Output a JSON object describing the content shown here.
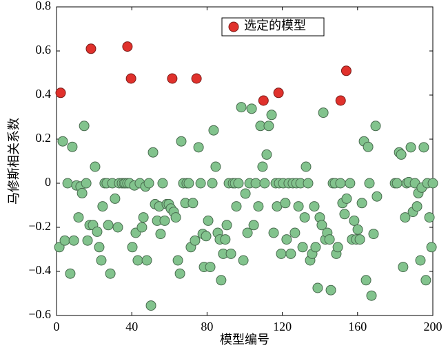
{
  "chart_data": {
    "type": "scatter",
    "xlabel": "模型编号",
    "ylabel": "马修斯相关系数",
    "xlim": [
      0,
      200
    ],
    "ylim": [
      -0.6,
      0.8
    ],
    "xticks": [
      0,
      40,
      80,
      120,
      160,
      200
    ],
    "yticks": [
      {
        "value": -0.6,
        "label": "−0.6"
      },
      {
        "value": -0.4,
        "label": "−0.4"
      },
      {
        "value": -0.2,
        "label": "−0.2"
      },
      0,
      0.2,
      0.4,
      0.6,
      0.8
    ],
    "legend": "top",
    "series": [
      {
        "color": "#82c38d",
        "x": [
          1.5,
          3.3,
          4.4,
          5.9,
          7.3,
          8.4,
          9.2,
          10.6,
          11.7,
          12.8,
          13.6,
          14.7,
          15.8,
          16.5,
          17.6,
          19.4,
          20.5,
          21.6,
          22.7,
          23.8,
          24.5,
          25.6,
          26.7,
          27.5,
          28.6,
          29.7,
          31.1,
          32.6,
          33.3,
          34.8,
          35.9,
          36.6,
          37.7,
          38.8,
          40.3,
          41.4,
          42.1,
          43.2,
          44.3,
          45.4,
          46.2,
          47.3,
          48,
          49.1,
          50.2,
          51.3,
          52.4,
          53.5,
          54.6,
          55.3,
          56.4,
          57.5,
          58.6,
          59.7,
          60.8,
          62.3,
          63.4,
          64.5,
          65.6,
          66.3,
          67.4,
          68.5,
          69.2,
          70.3,
          71.4,
          72.5,
          73.6,
          75.5,
          76.6,
          77.7,
          78.4,
          79.5,
          80.6,
          81.7,
          82.8,
          83.5,
          84.6,
          85.7,
          86.8,
          87.5,
          88.6,
          89.7,
          90.5,
          91.6,
          92.7,
          93.8,
          94.9,
          95.6,
          96.7,
          98.2,
          99.3,
          100.4,
          101.5,
          102.6,
          103.7,
          104.8,
          105.9,
          107.3,
          108.4,
          109.5,
          110.6,
          111.7,
          112.8,
          114.3,
          115.4,
          116.5,
          117.2,
          118.3,
          119.4,
          120.5,
          121.6,
          122.3,
          123.4,
          124.5,
          125.6,
          126.7,
          127.5,
          128.6,
          129.7,
          130.8,
          131.9,
          132.6,
          133.7,
          134.8,
          135.9,
          137,
          137.7,
          138.8,
          139.9,
          141,
          141.8,
          142.9,
          143.9,
          145.1,
          145.8,
          146.9,
          148,
          148.7,
          149.5,
          150.9,
          152,
          153.1,
          154.2,
          156,
          157.1,
          158.2,
          159.3,
          160.1,
          161.2,
          162.3,
          163.4,
          164.5,
          165.6,
          166.3,
          167.4,
          168.5,
          169.6,
          170.3,
          179.9,
          181,
          182.1,
          183.2,
          184.2,
          185.3,
          186.1,
          187.2,
          188.3,
          189.4,
          190.5,
          191.6,
          192.3,
          193.4,
          194.1,
          195.2,
          196.3,
          197.1,
          198.2,
          199.3,
          200
        ],
        "values": [
          -0.29,
          0.19,
          -0.26,
          0,
          -0.41,
          0.165,
          -0.26,
          -0.01,
          -0.155,
          -0.015,
          -0.045,
          0.26,
          0,
          -0.26,
          -0.19,
          -0.19,
          0.075,
          -0.22,
          -0.29,
          -0.35,
          -0.105,
          0,
          0,
          -0.19,
          -0.41,
          0,
          -0.07,
          -0.2,
          0,
          0,
          0,
          0,
          0,
          0,
          -0.29,
          -0.01,
          -0.225,
          -0.35,
          0,
          -0.2,
          -0.155,
          -0.015,
          -0.35,
          0,
          -0.555,
          0.14,
          -0.095,
          -0.17,
          -0.105,
          -0.23,
          0,
          -0.17,
          -0.095,
          -0.095,
          -0.115,
          -0.13,
          -0.155,
          -0.35,
          -0.41,
          0.19,
          0,
          -0.09,
          0,
          0,
          -0.29,
          -0.09,
          -0.26,
          0.163,
          0,
          -0.23,
          -0.38,
          -0.24,
          -0.17,
          -0.38,
          0,
          0.24,
          0.075,
          -0.225,
          -0.255,
          -0.44,
          -0.32,
          -0.255,
          -0.19,
          0,
          -0.32,
          0,
          0,
          -0.105,
          0,
          0.345,
          -0.35,
          -0.047,
          -0.225,
          0,
          0.338,
          -0.19,
          0,
          -0.105,
          0.26,
          0.075,
          0,
          0.13,
          0.26,
          0.31,
          -0.225,
          0,
          -0.105,
          0,
          -0.32,
          0,
          -0.09,
          -0.255,
          0,
          -0.32,
          0,
          -0.225,
          0,
          -0.105,
          0,
          -0.29,
          -0.155,
          0.075,
          0,
          -0.35,
          -0.32,
          -0.105,
          -0.29,
          -0.475,
          -0.155,
          -0.19,
          0.32,
          -0.255,
          -0.225,
          -0.255,
          -0.485,
          0,
          0,
          -0.32,
          -0.29,
          0,
          -0.09,
          -0.14,
          -0.07,
          0,
          -0.255,
          -0.17,
          -0.255,
          -0.21,
          -0.255,
          -0.09,
          0.19,
          -0.44,
          0.165,
          0,
          -0.51,
          -0.23,
          0.26,
          -0.06,
          0,
          0,
          0.14,
          0.13,
          -0.38,
          -0.155,
          0,
          0.005,
          0.163,
          -0.13,
          0,
          -0.105,
          -0.045,
          -0.35,
          -0.02,
          0.163,
          -0.44,
          0,
          -0.155,
          -0.29,
          0
        ]
      },
      {
        "name": "选定的模型",
        "color": "#e0312c",
        "x": [
          2.2,
          18.3,
          37.7,
          39.6,
          61.5,
          74.4,
          110,
          118,
          151,
          154
        ],
        "values": [
          0.41,
          0.61,
          0.62,
          0.475,
          0.475,
          0.475,
          0.375,
          0.41,
          0.375,
          0.51
        ]
      }
    ]
  }
}
